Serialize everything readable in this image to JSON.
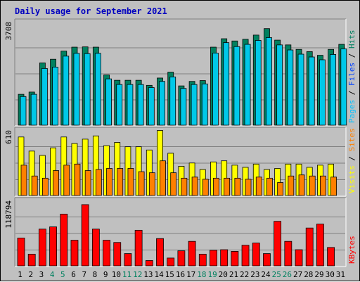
{
  "chart_data": [
    {
      "type": "bar",
      "title": "Daily usage for September 2021",
      "y_max_label": "3708",
      "ylim": [
        0,
        3708
      ],
      "legend": [
        {
          "name": "Pages",
          "color": "#00c0ff"
        },
        {
          "name": "Files",
          "color": "#0040ff"
        },
        {
          "name": "Hits",
          "color": "#008060"
        }
      ],
      "categories": [
        "1",
        "2",
        "3",
        "4",
        "5",
        "6",
        "7",
        "8",
        "9",
        "10",
        "11",
        "12",
        "13",
        "14",
        "15",
        "16",
        "17",
        "18",
        "19",
        "20",
        "21",
        "22",
        "23",
        "24",
        "25",
        "26",
        "27",
        "28",
        "29",
        "30",
        "31"
      ],
      "weekend_days": [
        "4",
        "5",
        "11",
        "12",
        "18",
        "19",
        "25",
        "26"
      ],
      "series": [
        {
          "name": "Hits",
          "values": [
            1100,
            1180,
            2220,
            2350,
            2640,
            2780,
            2790,
            2780,
            1790,
            1600,
            1600,
            1600,
            1420,
            1680,
            1890,
            1400,
            1560,
            1590,
            2780,
            3080,
            3000,
            3060,
            3210,
            3440,
            3030,
            2860,
            2700,
            2620,
            2490,
            2700,
            2880
          ]
        },
        {
          "name": "Files",
          "values": [
            1020,
            1100,
            2020,
            2070,
            2460,
            2560,
            2550,
            2560,
            1650,
            1450,
            1450,
            1450,
            1340,
            1560,
            1720,
            1310,
            1450,
            1470,
            2570,
            2940,
            2800,
            2880,
            3020,
            3120,
            2860,
            2680,
            2530,
            2430,
            2330,
            2520,
            2720
          ]
        },
        {
          "name": "Pages",
          "values": [
            0,
            0,
            0,
            0,
            0,
            0,
            0,
            0,
            0,
            0,
            0,
            0,
            0,
            0,
            0,
            0,
            0,
            0,
            0,
            0,
            0,
            0,
            0,
            0,
            0,
            0,
            0,
            0,
            0,
            0,
            0
          ]
        }
      ]
    },
    {
      "type": "bar",
      "y_max_label": "610",
      "ylim": [
        0,
        610
      ],
      "legend": [
        {
          "name": "Visits",
          "color": "#ffff00"
        },
        {
          "name": "Sites",
          "color": "#ff8000"
        }
      ],
      "categories": [
        "1",
        "2",
        "3",
        "4",
        "5",
        "6",
        "7",
        "8",
        "9",
        "10",
        "11",
        "12",
        "13",
        "14",
        "15",
        "16",
        "17",
        "18",
        "19",
        "20",
        "21",
        "22",
        "23",
        "24",
        "25",
        "26",
        "27",
        "28",
        "29",
        "30",
        "31"
      ],
      "series": [
        {
          "name": "Visits",
          "values": [
            540,
            410,
            370,
            440,
            540,
            480,
            520,
            550,
            460,
            490,
            450,
            450,
            420,
            600,
            390,
            270,
            300,
            240,
            310,
            320,
            280,
            260,
            290,
            240,
            250,
            290,
            290,
            260,
            280,
            290,
            0
          ]
        },
        {
          "name": "Sites",
          "values": [
            280,
            180,
            160,
            230,
            280,
            290,
            230,
            240,
            250,
            250,
            250,
            220,
            210,
            320,
            210,
            160,
            170,
            150,
            160,
            160,
            160,
            150,
            170,
            160,
            120,
            180,
            190,
            180,
            180,
            170,
            0
          ]
        }
      ]
    },
    {
      "type": "bar",
      "y_max_label": "118794",
      "ylim": [
        0,
        118794
      ],
      "legend": [
        {
          "name": "KBytes",
          "color": "#ff0000"
        }
      ],
      "categories": [
        "1",
        "2",
        "3",
        "4",
        "5",
        "6",
        "7",
        "8",
        "9",
        "10",
        "11",
        "12",
        "13",
        "14",
        "15",
        "16",
        "17",
        "18",
        "19",
        "20",
        "21",
        "22",
        "23",
        "24",
        "25",
        "26",
        "27",
        "28",
        "29",
        "30",
        "31"
      ],
      "series": [
        {
          "name": "KBytes",
          "values": [
            50000,
            21000,
            66000,
            70000,
            93000,
            46000,
            110000,
            66000,
            46000,
            42000,
            22000,
            64000,
            9500,
            49000,
            14000,
            27000,
            44000,
            21000,
            28000,
            29000,
            26000,
            37000,
            41000,
            22000,
            80000,
            44000,
            29000,
            68000,
            75000,
            33000,
            0
          ]
        }
      ]
    }
  ]
}
